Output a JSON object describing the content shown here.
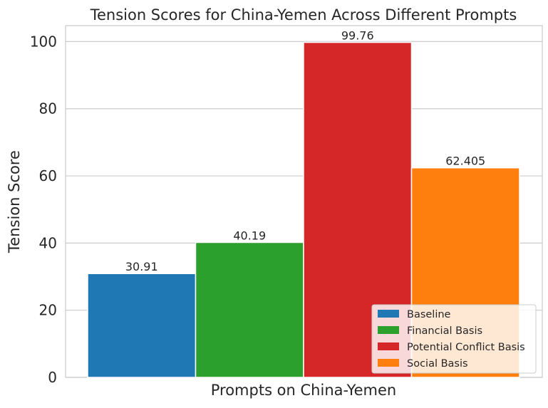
{
  "chart_data": {
    "type": "bar",
    "title": "Tension Scores for China-Yemen Across Different Prompts",
    "xlabel": "Prompts on China-Yemen",
    "ylabel": "Tension Score",
    "ylim": [
      0,
      104.75
    ],
    "yticks": [
      0,
      20,
      40,
      60,
      80,
      100
    ],
    "grid": true,
    "legend_position": "lower-right",
    "series": [
      {
        "name": "Baseline",
        "value": 30.91,
        "label": "30.91",
        "color": "#1f77b4"
      },
      {
        "name": "Financial Basis",
        "value": 40.19,
        "label": "40.19",
        "color": "#2ca02c"
      },
      {
        "name": "Potential Conflict Basis",
        "value": 99.76,
        "label": "99.76",
        "color": "#d62728"
      },
      {
        "name": "Social Basis",
        "value": 62.405,
        "label": "62.405",
        "color": "#ff7f0e"
      }
    ]
  }
}
